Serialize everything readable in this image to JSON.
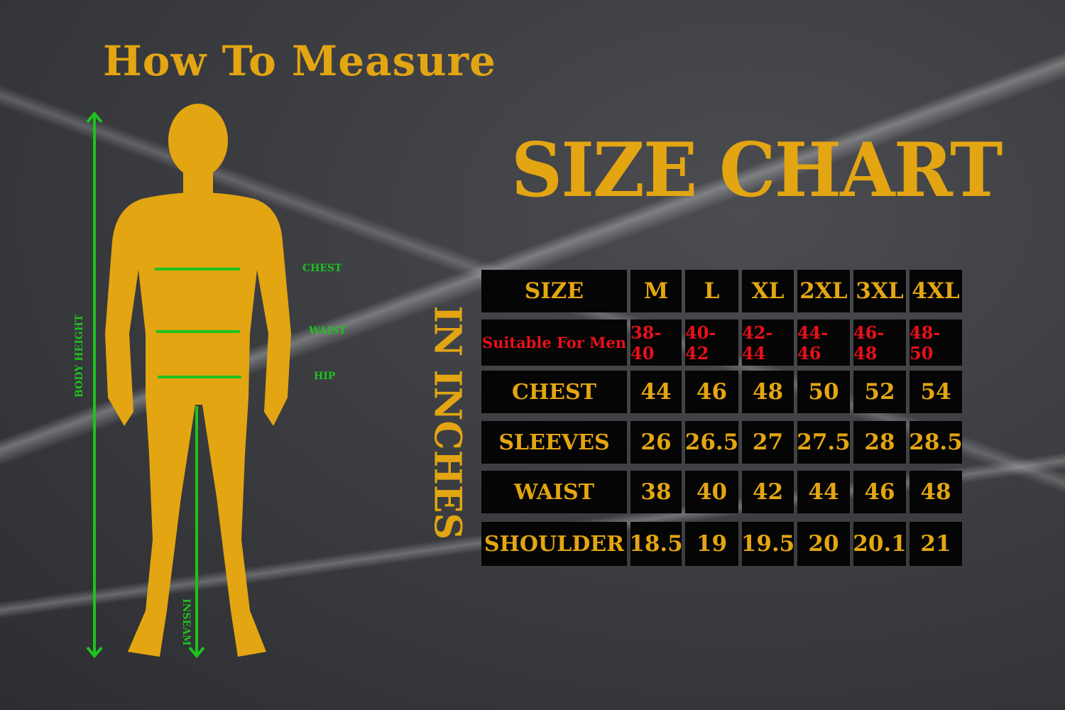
{
  "how_to_measure": {
    "title": "How To Measure",
    "labels": {
      "chest": "CHEST",
      "waist": "WAIST",
      "hip": "HIP",
      "body_height": "BODY HEIGHT",
      "inseam": "INSEAM"
    }
  },
  "size_chart": {
    "title": "SIZE CHART",
    "unit_label": "IN INCHES",
    "header": [
      "SIZE",
      "M",
      "L",
      "XL",
      "2XL",
      "3XL",
      "4XL"
    ],
    "rows": [
      {
        "label": "Suitable For Men",
        "values": [
          "38-40",
          "40-42",
          "42-44",
          "44-46",
          "46-48",
          "48-50"
        ]
      },
      {
        "label": "CHEST",
        "values": [
          "44",
          "46",
          "48",
          "50",
          "52",
          "54"
        ]
      },
      {
        "label": "SLEEVES",
        "values": [
          "26",
          "26.5",
          "27",
          "27.5",
          "28",
          "28.5"
        ]
      },
      {
        "label": "WAIST",
        "values": [
          "38",
          "40",
          "42",
          "44",
          "46",
          "48"
        ]
      },
      {
        "label": "SHOULDER",
        "values": [
          "18.5",
          "19",
          "19.5",
          "20",
          "20.1",
          "21"
        ]
      }
    ]
  },
  "colors": {
    "accent": "#e3a512",
    "measure_lines": "#1ec21e",
    "highlight_row": "#e8101a",
    "cell_bg": "#050505"
  }
}
